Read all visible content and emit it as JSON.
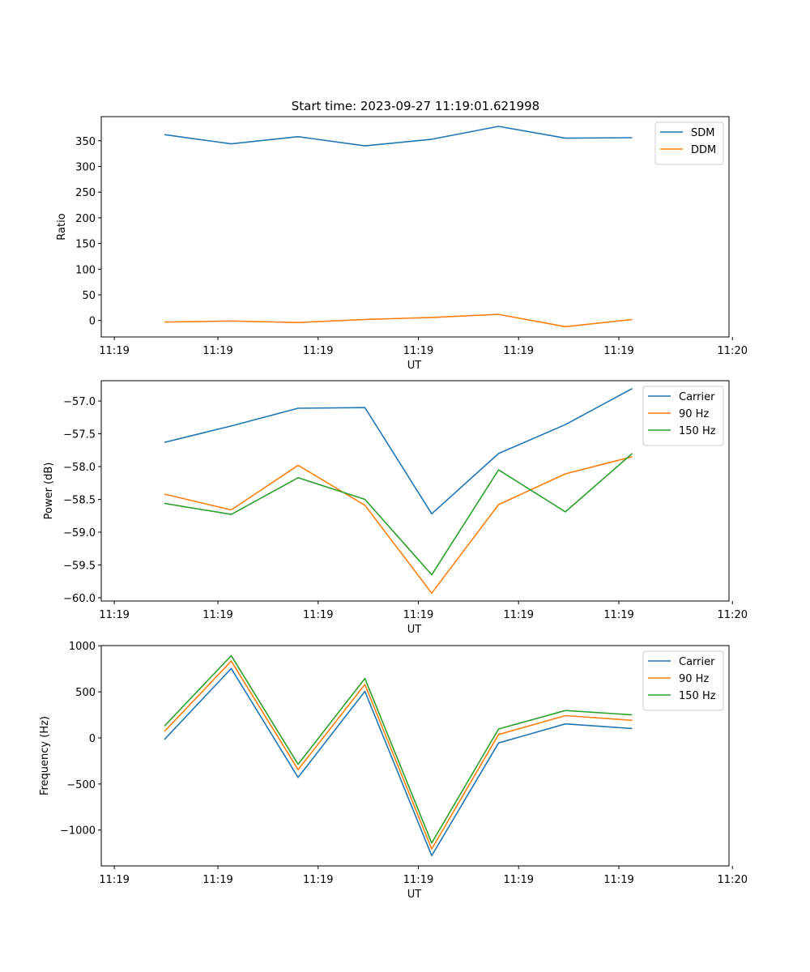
{
  "figure_title": "Start time: 2023-09-27 11:19:01.621998",
  "colors": {
    "blue": "#1f77b4",
    "orange": "#ff7f0e",
    "green": "#2ca02c",
    "axis": "#000000",
    "legend_border": "#cccccc"
  },
  "chart_data": [
    {
      "type": "line",
      "title": "Start time: 2023-09-27 11:19:01.621998",
      "xlabel": "UT",
      "ylabel": "Ratio",
      "x": [
        0,
        1,
        2,
        3,
        4,
        5,
        6,
        7
      ],
      "xlim": [
        -0.75,
        8.5
      ],
      "xticks": [
        -0.75,
        0.8,
        2.3,
        3.8,
        5.3,
        6.8,
        8.5
      ],
      "xtick_labels": [
        "11:19",
        "11:19",
        "11:19",
        "11:19",
        "11:19",
        "11:19",
        "11:20"
      ],
      "ylim": [
        -32,
        397
      ],
      "yticks": [
        0,
        50,
        100,
        150,
        200,
        250,
        300,
        350
      ],
      "ytick_labels": [
        "0",
        "50",
        "100",
        "150",
        "200",
        "250",
        "300",
        "350"
      ],
      "legend_position": "top-right",
      "series": [
        {
          "name": "SDM",
          "color": "#1f77b4",
          "values": [
            362,
            344,
            358,
            340,
            353,
            378,
            355,
            356
          ]
        },
        {
          "name": "DDM",
          "color": "#ff7f0e",
          "values": [
            -3,
            -1,
            -4,
            2,
            6,
            12,
            -12,
            2
          ]
        }
      ]
    },
    {
      "type": "line",
      "title": "",
      "xlabel": "UT",
      "ylabel": "Power (dB)",
      "x": [
        0,
        1,
        2,
        3,
        4,
        5,
        6,
        7
      ],
      "xlim": [
        -0.75,
        8.5
      ],
      "xticks": [
        -0.75,
        0.8,
        2.3,
        3.8,
        5.3,
        6.8,
        8.5
      ],
      "xtick_labels": [
        "11:19",
        "11:19",
        "11:19",
        "11:19",
        "11:19",
        "11:19",
        "11:20"
      ],
      "ylim": [
        -60.05,
        -56.69
      ],
      "yticks": [
        -60.0,
        -59.5,
        -59.0,
        -58.5,
        -58.0,
        -57.5,
        -57.0
      ],
      "ytick_labels": [
        "−60.0",
        "−59.5",
        "−59.0",
        "−58.5",
        "−58.0",
        "−57.5",
        "−57.0"
      ],
      "legend_position": "top-right",
      "series": [
        {
          "name": "Carrier",
          "color": "#1f77b4",
          "values": [
            -57.63,
            -57.38,
            -57.11,
            -57.1,
            -58.72,
            -57.8,
            -57.36,
            -56.81
          ]
        },
        {
          "name": "90 Hz",
          "color": "#ff7f0e",
          "values": [
            -58.42,
            -58.66,
            -57.98,
            -58.59,
            -59.93,
            -58.58,
            -58.11,
            -57.85
          ]
        },
        {
          "name": "150 Hz",
          "color": "#2ca02c",
          "values": [
            -58.56,
            -58.73,
            -58.17,
            -58.5,
            -59.65,
            -58.05,
            -58.69,
            -57.8
          ]
        }
      ]
    },
    {
      "type": "line",
      "title": "",
      "xlabel": "UT",
      "ylabel": "Frequency (Hz)",
      "x": [
        0,
        1,
        2,
        3,
        4,
        5,
        6,
        7
      ],
      "xlim": [
        -0.75,
        8.5
      ],
      "xticks": [
        -0.75,
        0.8,
        2.3,
        3.8,
        5.3,
        6.8,
        8.5
      ],
      "xtick_labels": [
        "11:19",
        "11:19",
        "11:19",
        "11:19",
        "11:19",
        "11:19",
        "11:20"
      ],
      "ylim": [
        -1389,
        1002
      ],
      "yticks": [
        -1000,
        -500,
        0,
        500,
        1000
      ],
      "ytick_labels": [
        "−1000",
        "−500",
        "0",
        "500",
        "1000"
      ],
      "legend_position": "top-right",
      "series": [
        {
          "name": "Carrier",
          "color": "#1f77b4",
          "values": [
            -17,
            753,
            -429,
            505,
            -1278,
            -55,
            152,
            102
          ]
        },
        {
          "name": "90 Hz",
          "color": "#ff7f0e",
          "values": [
            70,
            833,
            -345,
            580,
            -1205,
            37,
            242,
            191
          ]
        },
        {
          "name": "150 Hz",
          "color": "#2ca02c",
          "values": [
            128,
            893,
            -287,
            645,
            -1140,
            97,
            297,
            250
          ]
        }
      ]
    }
  ]
}
